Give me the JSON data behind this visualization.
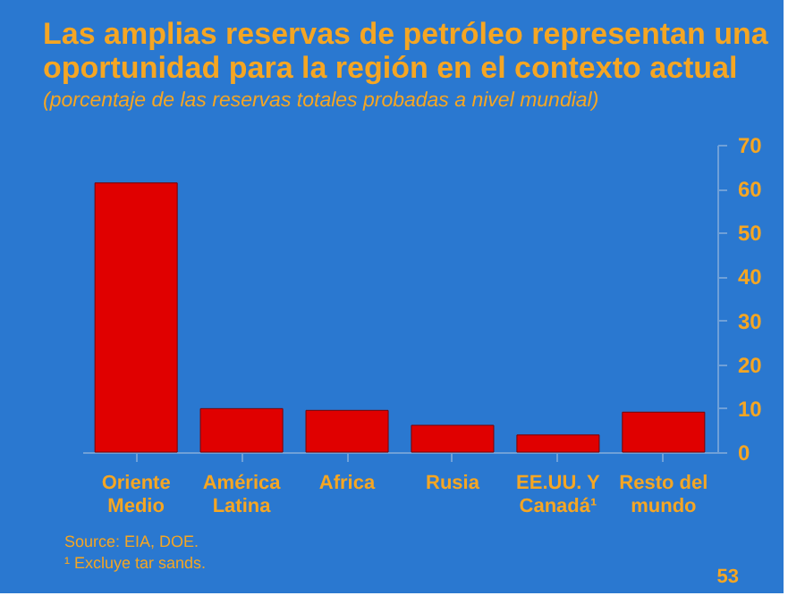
{
  "chart_data": {
    "type": "bar",
    "title": [
      "Las amplias reservas de petróleo representan una",
      "oportunidad para la región en el contexto actual"
    ],
    "subtitle": "(porcentaje de las reservas totales probadas a nivel mundial)",
    "categories": [
      "Oriente\nMedio",
      "América\nLatina",
      "Africa",
      "Rusia",
      "EE.UU. Y\nCanadá¹",
      "Resto del\nmundo"
    ],
    "values": [
      61.3,
      9.9,
      9.5,
      6.1,
      3.9,
      9.1
    ],
    "color": "#e00000",
    "ylim": [
      0,
      70
    ],
    "yticks": [
      0,
      10,
      20,
      30,
      40,
      50,
      60,
      70
    ],
    "grid": false,
    "annotations": [
      "Source: EIA, DOE.",
      "¹ Excluye tar sands.",
      "53"
    ]
  }
}
